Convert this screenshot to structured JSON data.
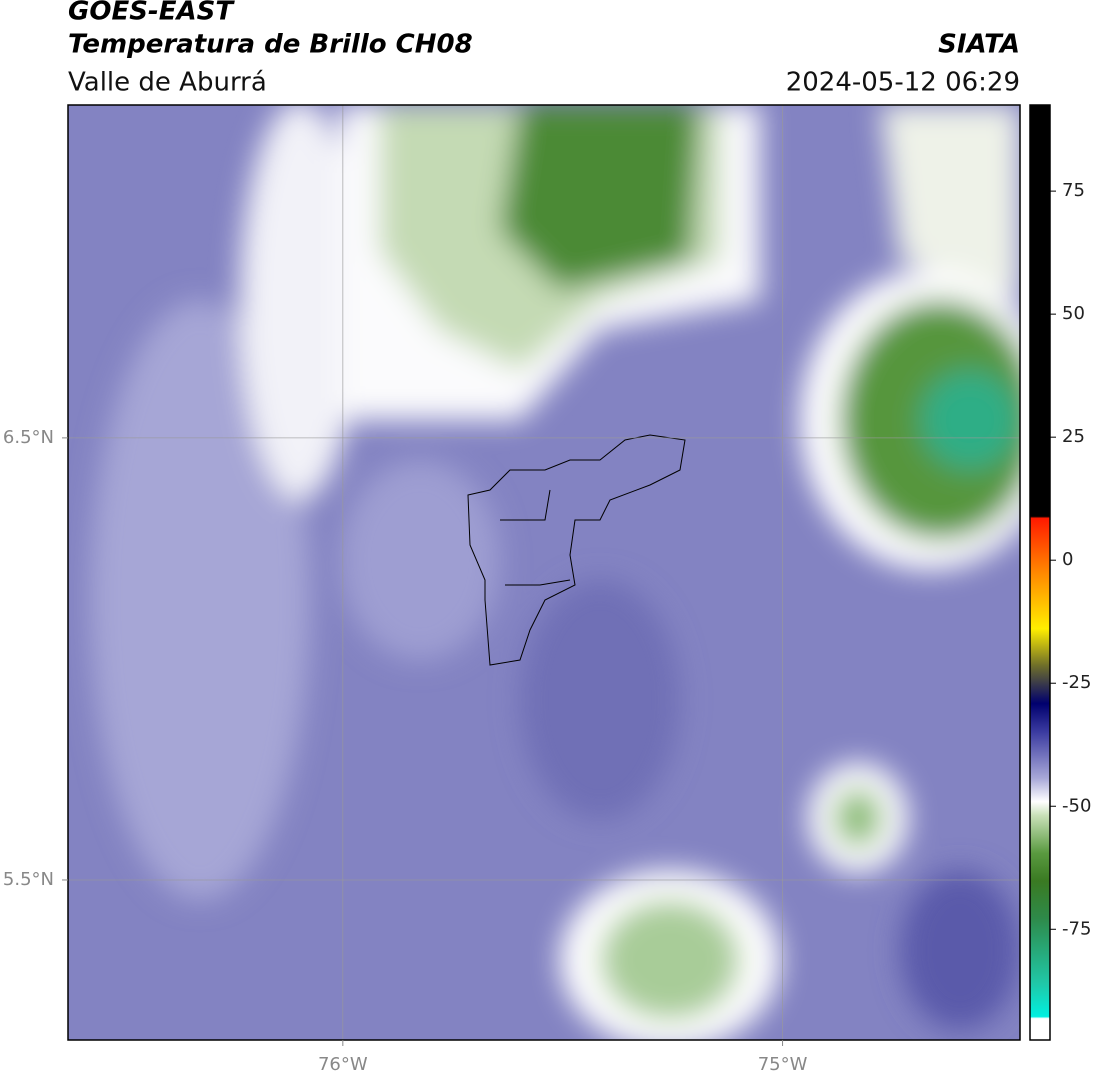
{
  "header": {
    "title": "GOES-EAST",
    "subtitle": "Temperatura de Brillo CH08",
    "region": "Valle de Aburrá",
    "agency": "SIATA",
    "datetime": "2024-05-12 06:29"
  },
  "map": {
    "xlim": [
      -76.625,
      -74.46
    ],
    "ylim": [
      5.138,
      7.253
    ],
    "xticks": [
      {
        "value": -76,
        "label": "76°W"
      },
      {
        "value": -75,
        "label": "75°W"
      }
    ],
    "yticks": [
      {
        "value": 6.5,
        "label": "6.5°N"
      },
      {
        "value": 5.5,
        "label": "5.5°N"
      }
    ],
    "grid": true
  },
  "colorbar": {
    "lim": [
      -97.5,
      92.5
    ],
    "ticks": [
      75,
      50,
      25,
      0,
      -25,
      -50,
      -75
    ]
  }
}
